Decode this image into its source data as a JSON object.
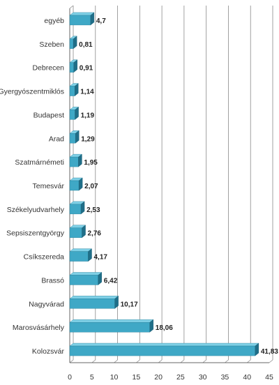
{
  "chart_data": {
    "type": "bar",
    "orientation": "horizontal",
    "categories": [
      "egyéb",
      "Szeben",
      "Debrecen",
      "Gyergyószentmiklós",
      "Budapest",
      "Arad",
      "Szatmárnémeti",
      "Temesvár",
      "Székelyudvarhely",
      "Sepsiszentgyörgy",
      "Csíkszereda",
      "Brassó",
      "Nagyvárad",
      "Marosvásárhely",
      "Kolozsvár"
    ],
    "values": [
      4.7,
      0.81,
      0.91,
      1.14,
      1.19,
      1.29,
      1.95,
      2.07,
      2.53,
      2.76,
      4.17,
      6.42,
      10.17,
      18.06,
      41.83
    ],
    "value_labels": [
      "4,7",
      "0,81",
      "0,91",
      "1,14",
      "1,19",
      "1,29",
      "1,95",
      "2,07",
      "2,53",
      "2,76",
      "4,17",
      "6,42",
      "10,17",
      "18,06",
      "41,83"
    ],
    "x_ticks": [
      0,
      5,
      10,
      15,
      20,
      25,
      30,
      35,
      40,
      45
    ],
    "xlim": [
      0,
      45
    ],
    "grid": "vertical",
    "bar_style": "3d",
    "colors": {
      "bar_front": "#3fa8c6",
      "bar_top": "#7fd0e6",
      "bar_side": "#1f6e88",
      "grid": "#8a8a8a",
      "axis": "#666666"
    }
  }
}
